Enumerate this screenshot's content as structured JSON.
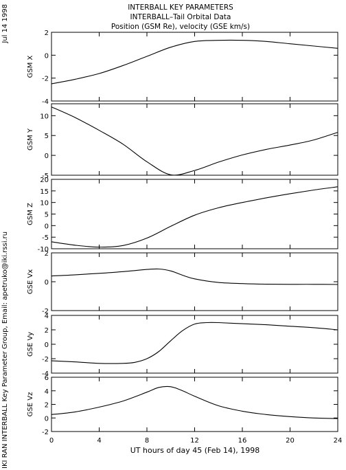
{
  "header": {
    "title": "INTERBALL KEY PARAMETERS",
    "subtitle": "INTERBALL–Tail Orbital Data",
    "units_line": "Position (GSM Re), velocity (GSE km/s)"
  },
  "side_labels": {
    "date": "Jul 14 1998",
    "credit": "IKI RAN INTERBALL Key Parameter Group, Email: apetruko@iki.rssi.ru"
  },
  "x_axis": {
    "label": "UT hours of day  45 (Feb 14), 1998",
    "range": [
      0,
      24
    ],
    "ticks": [
      "0",
      "4",
      "8",
      "12",
      "16",
      "20",
      "24"
    ]
  },
  "chart_data": [
    {
      "type": "line",
      "ylabel": "GSM X",
      "xlim": [
        0,
        24
      ],
      "ylim": [
        -4,
        2
      ],
      "yticks": [
        "-4",
        "-2",
        "0",
        "2"
      ],
      "x": [
        0,
        2,
        4,
        6,
        8,
        10,
        12,
        14,
        16,
        18,
        20,
        22,
        24
      ],
      "y": [
        -2.5,
        -2.1,
        -1.6,
        -0.9,
        -0.1,
        0.7,
        1.2,
        1.3,
        1.3,
        1.2,
        1.0,
        0.8,
        0.6
      ]
    },
    {
      "type": "line",
      "ylabel": "GSM Y",
      "xlim": [
        0,
        24
      ],
      "ylim": [
        -5,
        13
      ],
      "yticks": [
        "-5",
        "0",
        "5",
        "10"
      ],
      "x": [
        0,
        2,
        4,
        6,
        8,
        10,
        12,
        14,
        16,
        18,
        20,
        22,
        24
      ],
      "y": [
        12.2,
        9.5,
        6.3,
        2.8,
        -1.6,
        -4.9,
        -3.8,
        -1.7,
        0.1,
        1.5,
        2.6,
        3.9,
        5.8
      ]
    },
    {
      "type": "line",
      "ylabel": "GSM Z",
      "xlim": [
        0,
        24
      ],
      "ylim": [
        -10,
        20
      ],
      "yticks": [
        "-10",
        "-5",
        "0",
        "5",
        "10",
        "15",
        "20"
      ],
      "x": [
        0,
        2,
        4,
        6,
        8,
        10,
        12,
        14,
        16,
        18,
        20,
        22,
        24
      ],
      "y": [
        -7,
        -8.5,
        -9.3,
        -8.6,
        -5.4,
        -0.3,
        4.5,
        7.7,
        10,
        12,
        13.8,
        15.4,
        16.8
      ]
    },
    {
      "type": "line",
      "ylabel": "GSE Vx",
      "xlim": [
        0,
        24
      ],
      "ylim": [
        -2,
        2
      ],
      "yticks": [
        "-2",
        "0",
        "2"
      ],
      "x": [
        0,
        2,
        4,
        6,
        8,
        9,
        10,
        11,
        12,
        14,
        16,
        18,
        20,
        22,
        24
      ],
      "y": [
        0.4,
        0.48,
        0.58,
        0.7,
        0.85,
        0.88,
        0.75,
        0.45,
        0.2,
        -0.05,
        -0.13,
        -0.17,
        -0.18,
        -0.18,
        -0.19
      ]
    },
    {
      "type": "line",
      "ylabel": "GSE Vy",
      "xlim": [
        0,
        24
      ],
      "ylim": [
        -4,
        4
      ],
      "yticks": [
        "-4",
        "-2",
        "0",
        "2",
        "4"
      ],
      "x": [
        0,
        2,
        4,
        6,
        7,
        8,
        9,
        10,
        11,
        12,
        13,
        14,
        16,
        18,
        20,
        22,
        24
      ],
      "y": [
        -2.3,
        -2.45,
        -2.65,
        -2.65,
        -2.5,
        -2.0,
        -1.0,
        0.5,
        1.9,
        2.8,
        3.0,
        3.0,
        2.85,
        2.7,
        2.5,
        2.3,
        2.0
      ]
    },
    {
      "type": "line",
      "ylabel": "GSE Vz",
      "xlim": [
        0,
        24
      ],
      "ylim": [
        -2,
        6
      ],
      "yticks": [
        "-2",
        "0",
        "2",
        "4",
        "6"
      ],
      "x": [
        0,
        2,
        4,
        6,
        8,
        9,
        10,
        11,
        12,
        14,
        16,
        18,
        20,
        22,
        24
      ],
      "y": [
        0.5,
        0.9,
        1.6,
        2.5,
        3.8,
        4.5,
        4.6,
        4.0,
        3.2,
        1.8,
        1.0,
        0.5,
        0.2,
        0.0,
        -0.1
      ]
    }
  ]
}
